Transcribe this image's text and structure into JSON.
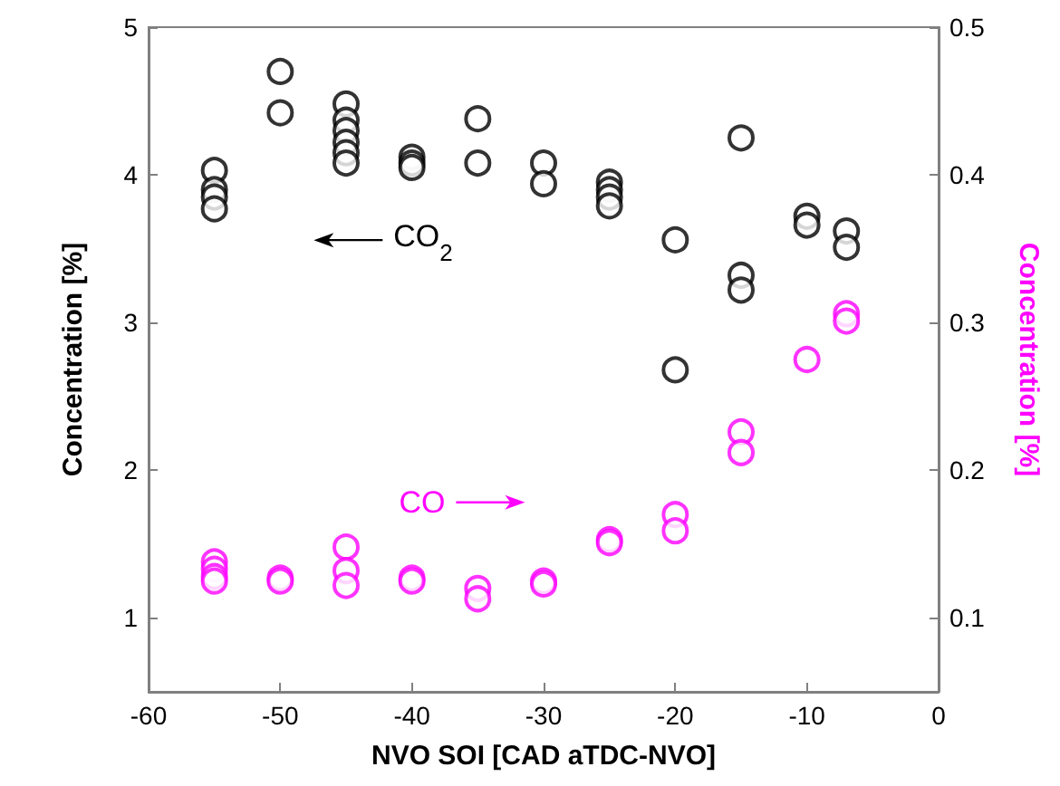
{
  "chart_data": {
    "type": "scatter",
    "xlabel": "NVO SOI [CAD aTDC-NVO]",
    "ylabel": "Concentration [%]",
    "y2label": "Concentration [%]",
    "marker": "circle",
    "grid": false,
    "xlim": [
      -60,
      0
    ],
    "xticks": [
      -60,
      -50,
      -40,
      -30,
      -20,
      -10,
      0
    ],
    "ylim": [
      0.5,
      5
    ],
    "yticks": [
      1,
      2,
      3,
      4,
      5
    ],
    "y2lim": [
      0.05,
      0.5
    ],
    "y2ticks": [
      0.1,
      0.2,
      0.3,
      0.4,
      0.5
    ],
    "series": [
      {
        "color": "#000000",
        "x": [
          -55,
          -55,
          -55,
          -55,
          -50,
          -50,
          -45,
          -45,
          -45,
          -45,
          -45,
          -45,
          -40,
          -40,
          -40,
          -35,
          -35,
          -30,
          -30,
          -25,
          -25,
          -25,
          -25,
          -20,
          -20,
          -15,
          -15,
          -15,
          -10,
          -10,
          -7,
          -7
        ],
        "values": [
          4.03,
          3.9,
          3.85,
          3.77,
          4.7,
          4.42,
          4.48,
          4.37,
          4.3,
          4.22,
          4.15,
          4.08,
          4.12,
          4.08,
          4.05,
          4.38,
          4.08,
          4.08,
          3.94,
          3.95,
          3.9,
          3.85,
          3.79,
          3.56,
          2.68,
          4.25,
          3.32,
          3.22,
          3.72,
          3.66,
          3.62,
          3.51
        ]
      },
      {
        "color": "#ff00ff",
        "axis": "y2",
        "x": [
          -55,
          -55,
          -55,
          -55,
          -50,
          -50,
          -45,
          -45,
          -45,
          -40,
          -40,
          -35,
          -35,
          -30,
          -30,
          -25,
          -25,
          -20,
          -20,
          -15,
          -15,
          -10,
          -7,
          -7
        ],
        "values": [
          0.138,
          0.133,
          0.128,
          0.125,
          0.127,
          0.125,
          0.148,
          0.132,
          0.122,
          0.127,
          0.125,
          0.12,
          0.113,
          0.125,
          0.123,
          0.153,
          0.151,
          0.17,
          0.159,
          0.226,
          0.212,
          0.275,
          0.306,
          0.301
        ]
      }
    ],
    "annotations": [
      "CO$_{2}$",
      "CO"
    ]
  }
}
